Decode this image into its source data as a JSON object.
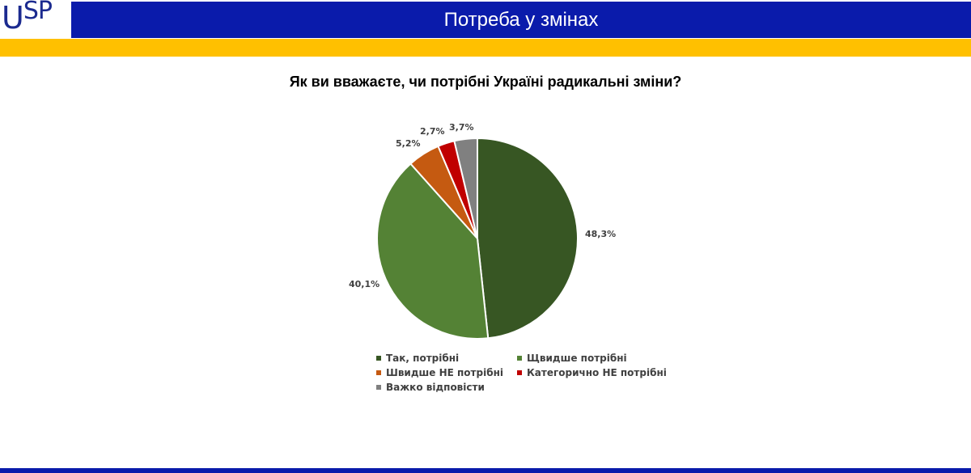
{
  "header": {
    "logo": "USP",
    "title": "Потреба у змінах",
    "colors": {
      "blue": "#0a1bab",
      "yellow": "#ffc000"
    }
  },
  "chart_data": {
    "type": "pie",
    "title": "Як ви вважаєте, чи потрібні Україні радикальні зміни?",
    "categories": [
      "Так, потрібні",
      "Щвидше потрібні",
      "Швидше НЕ потрібні",
      "Категорично НЕ потрібні",
      "Важко відповісти"
    ],
    "values": [
      48.3,
      40.1,
      5.2,
      2.7,
      3.7
    ],
    "value_labels": [
      "48,3%",
      "40,1%",
      "5,2%",
      "2,7%",
      "3,7%"
    ],
    "colors": [
      "#375623",
      "#548235",
      "#c55a11",
      "#c00000",
      "#808080"
    ],
    "legend_position": "bottom"
  },
  "legend": [
    {
      "label": "Так, потрібні",
      "color": "#375623"
    },
    {
      "label": "Щвидше потрібні",
      "color": "#548235"
    },
    {
      "label": "Швидше НЕ потрібні",
      "color": "#c55a11"
    },
    {
      "label": "Категорично НЕ потрібні",
      "color": "#c00000"
    },
    {
      "label": "Важко відповісти",
      "color": "#808080"
    }
  ]
}
